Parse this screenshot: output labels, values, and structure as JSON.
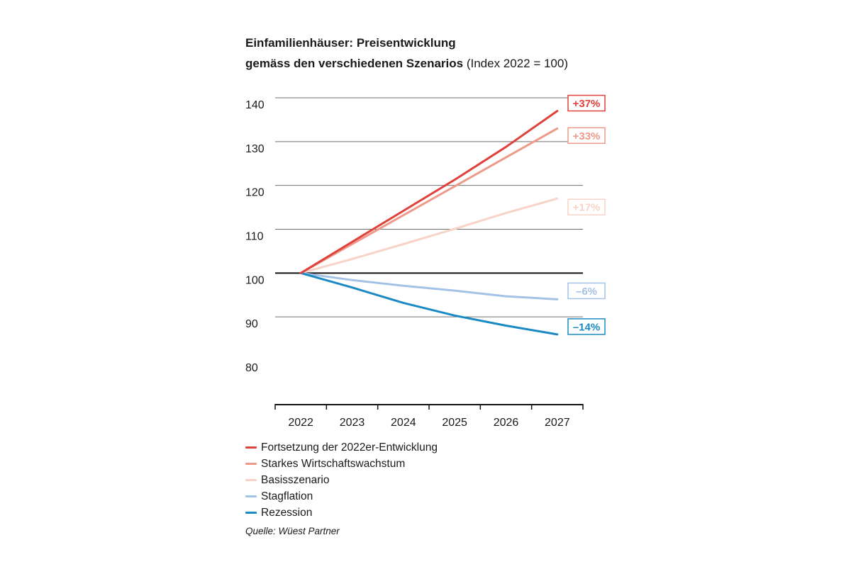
{
  "title": {
    "line1": "Einfamilienhäuser: Preisentwicklung",
    "line2_bold": "gemäss den verschiedenen Szenarios",
    "line2_plain": " (Index 2022 = 100)"
  },
  "chart_data": {
    "type": "line",
    "x": [
      "2022",
      "2023",
      "2024",
      "2025",
      "2026",
      "2027"
    ],
    "ylim": [
      80,
      140
    ],
    "yticks": [
      80,
      90,
      100,
      110,
      120,
      130,
      140
    ],
    "baseline": 100,
    "grid": true,
    "legend_position": "bottom",
    "series": [
      {
        "name": "Fortsetzung der 2022er-Entwicklung",
        "color": "#e0413b",
        "values": [
          100,
          107.1,
          114.2,
          121.3,
          128.8,
          137
        ],
        "end_label": "+37%"
      },
      {
        "name": "Starkes Wirtschaftswachstum",
        "color": "#ee9a8a",
        "values": [
          100,
          106.6,
          113.2,
          119.8,
          126.4,
          133
        ],
        "end_label": "+33%"
      },
      {
        "name": "Basisszenario",
        "color": "#f7d3c8",
        "values": [
          100,
          103.2,
          106.6,
          110.1,
          113.7,
          117
        ],
        "end_label": "+17%"
      },
      {
        "name": "Stagflation",
        "color": "#a3c3e6",
        "values": [
          100,
          98.4,
          97.1,
          96,
          94.7,
          94
        ],
        "end_label": "–6%"
      },
      {
        "name": "Rezession",
        "color": "#1b8ac4",
        "values": [
          100,
          96.7,
          93.2,
          90.3,
          88,
          86
        ],
        "end_label": "–14%"
      }
    ]
  },
  "source": "Quelle: Wüest Partner"
}
